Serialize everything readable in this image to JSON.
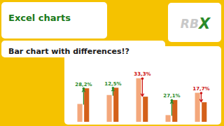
{
  "chart_data": {
    "type": "bar",
    "title": "Excel charts",
    "subtitle": "Bar chart with differences!?",
    "categories": [
      null,
      null,
      null,
      null,
      null
    ],
    "series": [
      {
        "color": "#F4A87C",
        "values": [
          0.32,
          0.48,
          0.78,
          0.12,
          0.52
        ]
      },
      {
        "color": "#D4601A",
        "values": [
          0.6,
          0.61,
          0.45,
          0.39,
          0.35
        ]
      }
    ],
    "diff_labels": [
      "28,2%",
      "12,5%",
      "33,3%",
      "27,1%",
      "17,7%"
    ],
    "diff_colors": [
      "#2A8A2A",
      "#2A8A2A",
      "#CC1111",
      "#2A8A2A",
      "#CC1111"
    ],
    "annotations": [
      {
        "text": "RB",
        "color": "#C8C8C8"
      },
      {
        "text": "X",
        "color": "#2A8A2A"
      }
    ],
    "ylim": [
      0,
      1.053
    ],
    "tick_labels": false,
    "grid": false
  }
}
